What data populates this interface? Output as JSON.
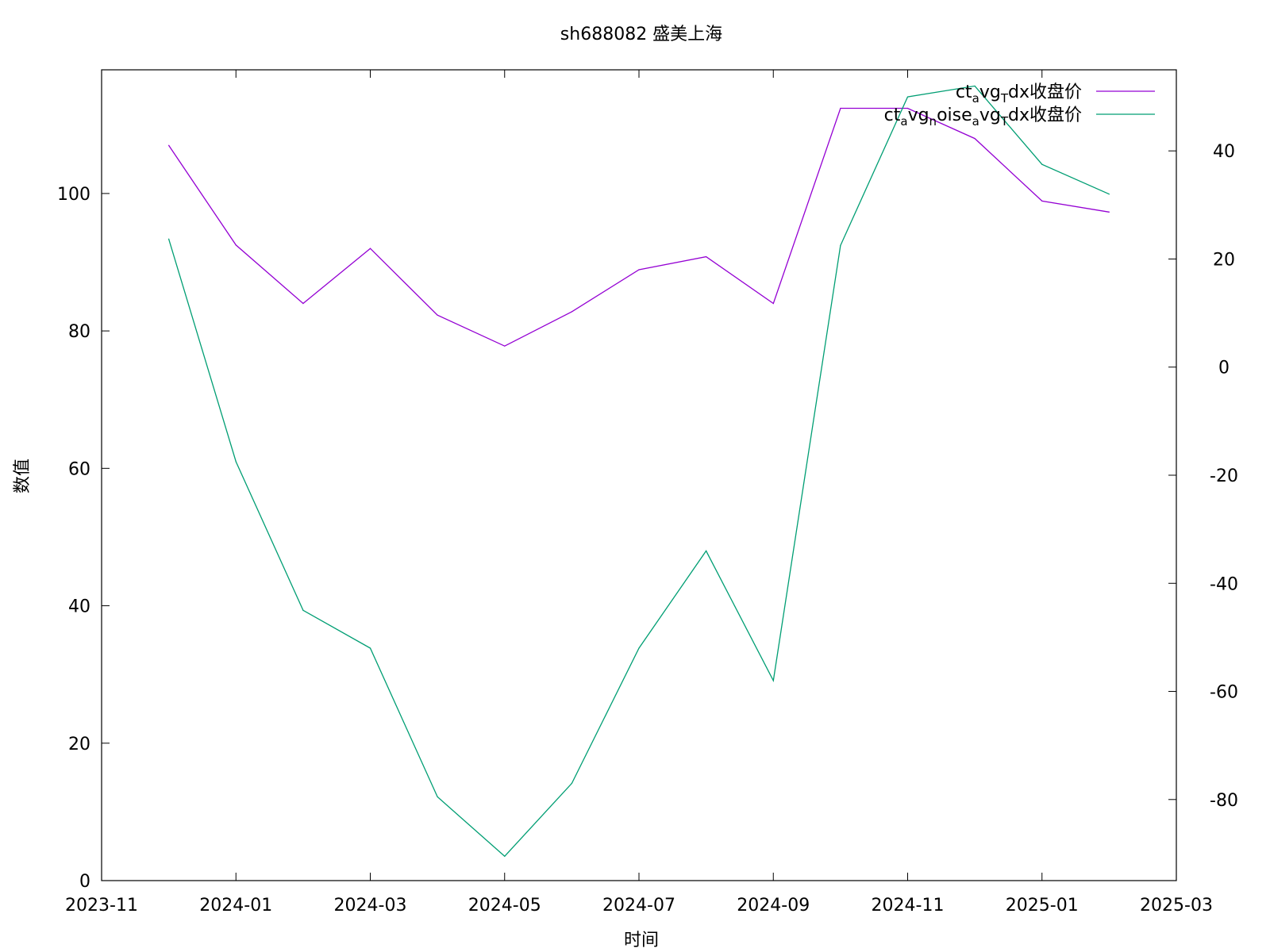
{
  "chart_data": {
    "type": "line",
    "title": "sh688082 盛美上海",
    "xlabel": "时间",
    "ylabel": "数值",
    "x": [
      "2023-12",
      "2024-01",
      "2024-02",
      "2024-03",
      "2024-04",
      "2024-05",
      "2024-06",
      "2024-07",
      "2024-08",
      "2024-09",
      "2024-10",
      "2024-11",
      "2024-12",
      "2025-01",
      "2025-02"
    ],
    "xlim": [
      "2023-11",
      "2025-03"
    ],
    "x_ticks": [
      "2023-11",
      "2024-01",
      "2024-03",
      "2024-05",
      "2024-07",
      "2024-09",
      "2024-11",
      "2025-01",
      "2025-03"
    ],
    "ylim": [
      0,
      118
    ],
    "y_ticks": [
      "0",
      "20",
      "40",
      "60",
      "80",
      "100"
    ],
    "y2lim": [
      -95,
      55
    ],
    "y2_ticks": [
      "-80",
      "-60",
      "-40",
      "-20",
      "0",
      "20",
      "40"
    ],
    "grid": false,
    "legend_position": "top-right",
    "series": [
      {
        "name": "ct_avg_Tdx收盘价",
        "axis": "left",
        "color": "#9400d3",
        "values": [
          107.0,
          92.5,
          84.0,
          92.0,
          82.3,
          77.8,
          82.8,
          88.9,
          90.8,
          84.0,
          112.4,
          112.4,
          108.0,
          98.9,
          97.3
        ]
      },
      {
        "name": "ct_avg_noise_avg_Tdx收盘价",
        "axis": "right",
        "color": "#009e73",
        "values": [
          23.7,
          -17.5,
          -45.0,
          -52.0,
          -79.5,
          -90.5,
          -77.0,
          -52.0,
          -34.0,
          -58.0,
          22.5,
          50.0,
          52.0,
          37.5,
          32.0
        ]
      }
    ]
  }
}
